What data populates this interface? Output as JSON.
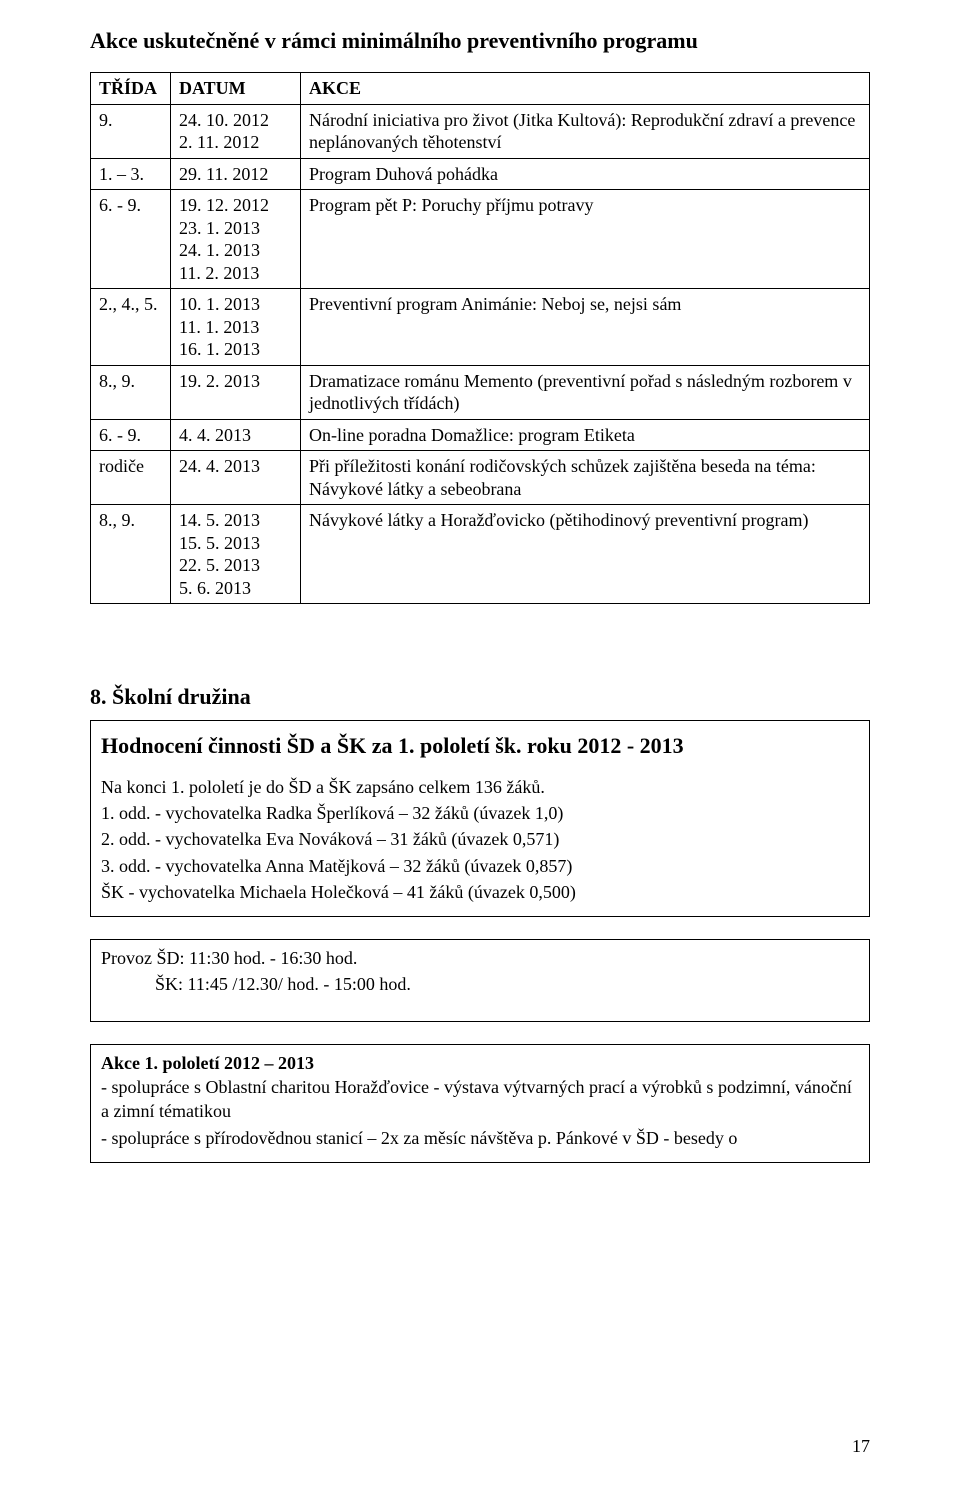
{
  "section1": {
    "title": "Akce uskutečněné v rámci minimálního preventivního programu",
    "headers": [
      "TŘÍDA",
      "DATUM",
      "AKCE"
    ],
    "rows": [
      {
        "trida": "9.",
        "datum": "24. 10. 2012\n2. 11. 2012",
        "akce": "Národní iniciativa pro život (Jitka Kultová): Reprodukční zdraví a prevence neplánovaných těhotenství"
      },
      {
        "trida": "1. – 3.",
        "datum": "29. 11. 2012",
        "akce": "Program Duhová pohádka"
      },
      {
        "trida": "6. - 9.",
        "datum": "19. 12. 2012\n23. 1. 2013\n24. 1. 2013\n11. 2. 2013",
        "akce": "Program pět P: Poruchy příjmu potravy"
      },
      {
        "trida": "2., 4., 5.",
        "datum": "10. 1. 2013\n11. 1. 2013\n16. 1. 2013",
        "akce": "Preventivní program Animánie: Neboj se, nejsi sám"
      },
      {
        "trida": "8., 9.",
        "datum": "19. 2. 2013",
        "akce": "Dramatizace románu Memento (preventivní pořad s následným rozborem v jednotlivých třídách)"
      },
      {
        "trida": "6. - 9.",
        "datum": "4. 4. 2013",
        "akce": "On-line poradna Domažlice: program Etiketa"
      },
      {
        "trida": "rodiče",
        "datum": "24. 4. 2013",
        "akce": "Při příležitosti konání rodičovských schůzek zajištěna beseda na téma: Návykové látky a sebeobrana"
      },
      {
        "trida": "8., 9.",
        "datum": "14. 5. 2013\n15. 5. 2013\n22. 5. 2013\n5. 6. 2013",
        "akce": "Návykové látky a Horažďovicko (pětihodinový preventivní program)"
      }
    ]
  },
  "section2": {
    "title": "8. Školní družina",
    "box1": {
      "heading": "Hodnocení činnosti ŠD a ŠK za 1. pololetí šk. roku 2012 - 2013",
      "lines": [
        "Na konci 1. pololetí je do ŠD a ŠK zapsáno celkem 136 žáků.",
        "1. odd. - vychovatelka Radka Šperlíková – 32 žáků (úvazek 1,0)",
        "2. odd. - vychovatelka Eva Nováková – 31 žáků (úvazek 0,571)",
        "3. odd. - vychovatelka Anna Matějková – 32 žáků (úvazek 0,857)",
        "ŠK - vychovatelka Michaela Holečková – 41 žáků (úvazek 0,500)"
      ]
    },
    "box2": {
      "lines": [
        "Provoz ŠD: 11:30 hod. - 16:30 hod.",
        "            ŠK: 11:45 /12.30/ hod. - 15:00 hod."
      ]
    },
    "box3": {
      "title": "Akce 1. pololetí 2012 – 2013",
      "lines": [
        "- spolupráce s Oblastní charitou Horažďovice -  výstava výtvarných prací a výrobků s podzimní, vánoční a zimní tématikou",
        "- spolupráce s přírodovědnou stanicí – 2x za měsíc návštěva p. Pánkové v ŠD - besedy o"
      ]
    }
  },
  "pageNumber": "17"
}
